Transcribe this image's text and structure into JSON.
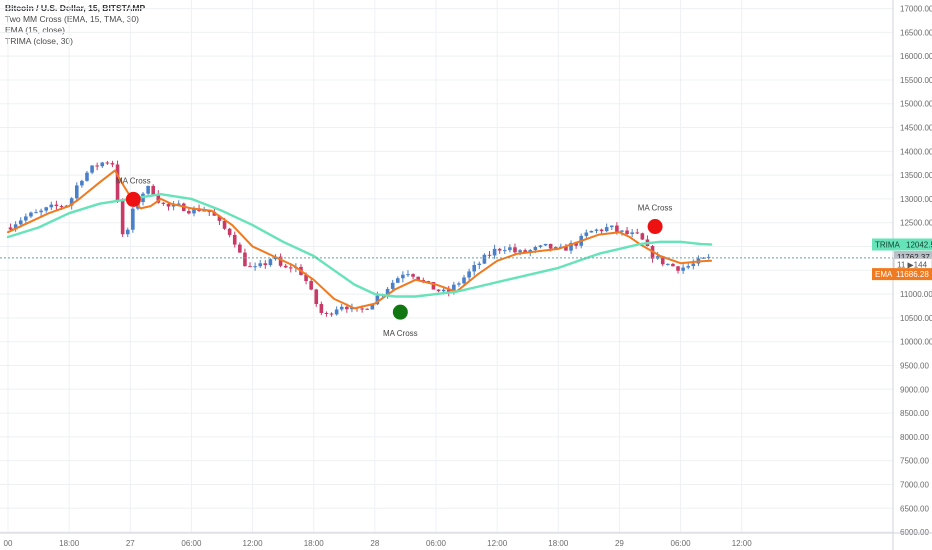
{
  "chart_data": {
    "type": "line",
    "title": "Bitcoin / U.S. Dollar, 15, BITSTAMP",
    "indicators": [
      "Two MM Cross (EMA, 15, TMA, 30)",
      "EMA (15, close)",
      "TRIMA (close, 30)"
    ],
    "yticks": [
      "6000.00",
      "6500.00",
      "7000.00",
      "7500.00",
      "8000.00",
      "8500.00",
      "9000.00",
      "9500.00",
      "10000.00",
      "10500.00",
      "11000.00",
      "11500.00",
      "12000.00",
      "12500.00",
      "13000.00",
      "13500.00",
      "14000.00",
      "14500.00",
      "15000.00",
      "15500.00",
      "16000.00",
      "16500.00",
      "17000.00"
    ],
    "ylim": [
      5980,
      17180
    ],
    "xlim": [
      0,
      84
    ],
    "xticks": [
      {
        "x": 0,
        "label": "00"
      },
      {
        "x": 6,
        "label": "18:00"
      },
      {
        "x": 12,
        "label": "27"
      },
      {
        "x": 18,
        "label": "06:00"
      },
      {
        "x": 24,
        "label": "12:00"
      },
      {
        "x": 30,
        "label": "18:00"
      },
      {
        "x": 36,
        "label": "28"
      },
      {
        "x": 42,
        "label": "06:00"
      },
      {
        "x": 48,
        "label": "12:00"
      },
      {
        "x": 54,
        "label": "18:00"
      },
      {
        "x": 60,
        "label": "29"
      },
      {
        "x": 66,
        "label": "06:00"
      },
      {
        "x": 72,
        "label": "12:00"
      }
    ],
    "price": [
      [
        0,
        12400
      ],
      [
        1,
        12550
      ],
      [
        2,
        12650
      ],
      [
        3,
        12700
      ],
      [
        4,
        12800
      ],
      [
        5,
        12850
      ],
      [
        6,
        12900
      ],
      [
        7,
        13400
      ],
      [
        8,
        13600
      ],
      [
        9,
        13750
      ],
      [
        10,
        13800
      ],
      [
        10.5,
        13700
      ],
      [
        11,
        12300
      ],
      [
        11.5,
        12100
      ],
      [
        12,
        12600
      ],
      [
        13,
        13100
      ],
      [
        14,
        13250
      ],
      [
        15,
        12900
      ],
      [
        16,
        12800
      ],
      [
        17,
        12850
      ],
      [
        18,
        12750
      ],
      [
        19,
        12800
      ],
      [
        20,
        12700
      ],
      [
        21,
        12400
      ],
      [
        22,
        12250
      ],
      [
        23,
        11700
      ],
      [
        24,
        11500
      ],
      [
        25,
        11600
      ],
      [
        26,
        11800
      ],
      [
        27,
        11500
      ],
      [
        28,
        11600
      ],
      [
        29,
        11400
      ],
      [
        30,
        10900
      ],
      [
        31,
        10500
      ],
      [
        32,
        10700
      ],
      [
        33,
        10800
      ],
      [
        34,
        10600
      ],
      [
        35,
        10700
      ],
      [
        36,
        10900
      ],
      [
        37,
        11100
      ],
      [
        38,
        11300
      ],
      [
        39,
        11500
      ],
      [
        40,
        11400
      ],
      [
        41,
        11200
      ],
      [
        42,
        11100
      ],
      [
        43,
        11000
      ],
      [
        44,
        11200
      ],
      [
        45,
        11400
      ],
      [
        46,
        11600
      ],
      [
        47,
        11800
      ],
      [
        48,
        11950
      ],
      [
        49,
        12000
      ],
      [
        50,
        11850
      ],
      [
        51,
        11900
      ],
      [
        52,
        11950
      ],
      [
        53,
        12000
      ],
      [
        54,
        11900
      ],
      [
        55,
        12000
      ],
      [
        56,
        12100
      ],
      [
        57,
        12300
      ],
      [
        58,
        12350
      ],
      [
        59,
        12400
      ],
      [
        60,
        12300
      ],
      [
        61,
        12250
      ],
      [
        62,
        12200
      ],
      [
        63,
        11850
      ],
      [
        64,
        11700
      ],
      [
        65,
        11600
      ],
      [
        66,
        11550
      ],
      [
        67,
        11600
      ],
      [
        68,
        11700
      ],
      [
        69,
        11760
      ]
    ],
    "series": [
      {
        "name": "EMA",
        "values": [
          [
            0,
            12300
          ],
          [
            2,
            12500
          ],
          [
            4,
            12700
          ],
          [
            6,
            12850
          ],
          [
            7,
            13000
          ],
          [
            9,
            13350
          ],
          [
            10.5,
            13600
          ],
          [
            11,
            13400
          ],
          [
            12,
            13050
          ],
          [
            13,
            12800
          ],
          [
            14,
            12850
          ],
          [
            15,
            13000
          ],
          [
            16,
            12900
          ],
          [
            18,
            12800
          ],
          [
            20,
            12750
          ],
          [
            22,
            12450
          ],
          [
            24,
            12000
          ],
          [
            26,
            11800
          ],
          [
            28,
            11600
          ],
          [
            30,
            11300
          ],
          [
            32,
            10900
          ],
          [
            34,
            10700
          ],
          [
            36,
            10800
          ],
          [
            38,
            11100
          ],
          [
            40,
            11300
          ],
          [
            42,
            11200
          ],
          [
            44,
            11050
          ],
          [
            46,
            11400
          ],
          [
            48,
            11700
          ],
          [
            50,
            11850
          ],
          [
            52,
            11900
          ],
          [
            54,
            11950
          ],
          [
            56,
            12100
          ],
          [
            58,
            12250
          ],
          [
            60,
            12300
          ],
          [
            61,
            12200
          ],
          [
            62,
            12050
          ],
          [
            64,
            11800
          ],
          [
            66,
            11650
          ],
          [
            68,
            11690
          ],
          [
            69,
            11700
          ]
        ]
      },
      {
        "name": "TRIMA",
        "values": [
          [
            0,
            12200
          ],
          [
            3,
            12400
          ],
          [
            6,
            12700
          ],
          [
            9,
            12900
          ],
          [
            12,
            13000
          ],
          [
            15,
            13100
          ],
          [
            18,
            13000
          ],
          [
            21,
            12750
          ],
          [
            24,
            12450
          ],
          [
            27,
            12100
          ],
          [
            30,
            11800
          ],
          [
            32,
            11500
          ],
          [
            34,
            11200
          ],
          [
            36,
            11000
          ],
          [
            38,
            10950
          ],
          [
            40,
            10950
          ],
          [
            42,
            11000
          ],
          [
            44,
            11050
          ],
          [
            46,
            11150
          ],
          [
            48,
            11250
          ],
          [
            50,
            11350
          ],
          [
            52,
            11450
          ],
          [
            54,
            11550
          ],
          [
            56,
            11700
          ],
          [
            58,
            11850
          ],
          [
            60,
            11950
          ],
          [
            62,
            12050
          ],
          [
            64,
            12100
          ],
          [
            66,
            12100
          ],
          [
            68,
            12050
          ],
          [
            69,
            12043
          ]
        ]
      }
    ],
    "annotations": [
      {
        "x": 12.3,
        "y": 12990,
        "color": "#ee1111",
        "label": "MA Cross",
        "label_pos": "above"
      },
      {
        "x": 38.5,
        "y": 10620,
        "color": "#117711",
        "label": "MA Cross",
        "label_pos": "below"
      },
      {
        "x": 63.5,
        "y": 12420,
        "color": "#ee1111",
        "label": "MA Cross",
        "label_pos": "above"
      }
    ],
    "current_price_line": 11762,
    "price_tags": [
      {
        "label": "TRIMA",
        "value_text": "12042.52",
        "y": 12042.52,
        "color": "#66e3b8",
        "text_color": "#114433"
      },
      {
        "label": "",
        "value_text": "11762.37",
        "y": 11780,
        "color": "#b9c0c8",
        "text_color": "#222222"
      },
      {
        "label": "",
        "value_text": "11 ▶144",
        "y": 11620,
        "color": "#ffffff",
        "text_color": "#555555"
      },
      {
        "label": "EMA",
        "value_text": "11686.28",
        "y": 11420,
        "color": "#f07a20",
        "text_color": "#ffffff"
      }
    ],
    "colors": {
      "ema": "#f07a20",
      "trima": "#66e3b8",
      "up": "#4a80c9",
      "down": "#c93a67",
      "grid": "#eef0f3",
      "axis": "#cfd3d8",
      "price_line": "#6aa39a"
    }
  }
}
